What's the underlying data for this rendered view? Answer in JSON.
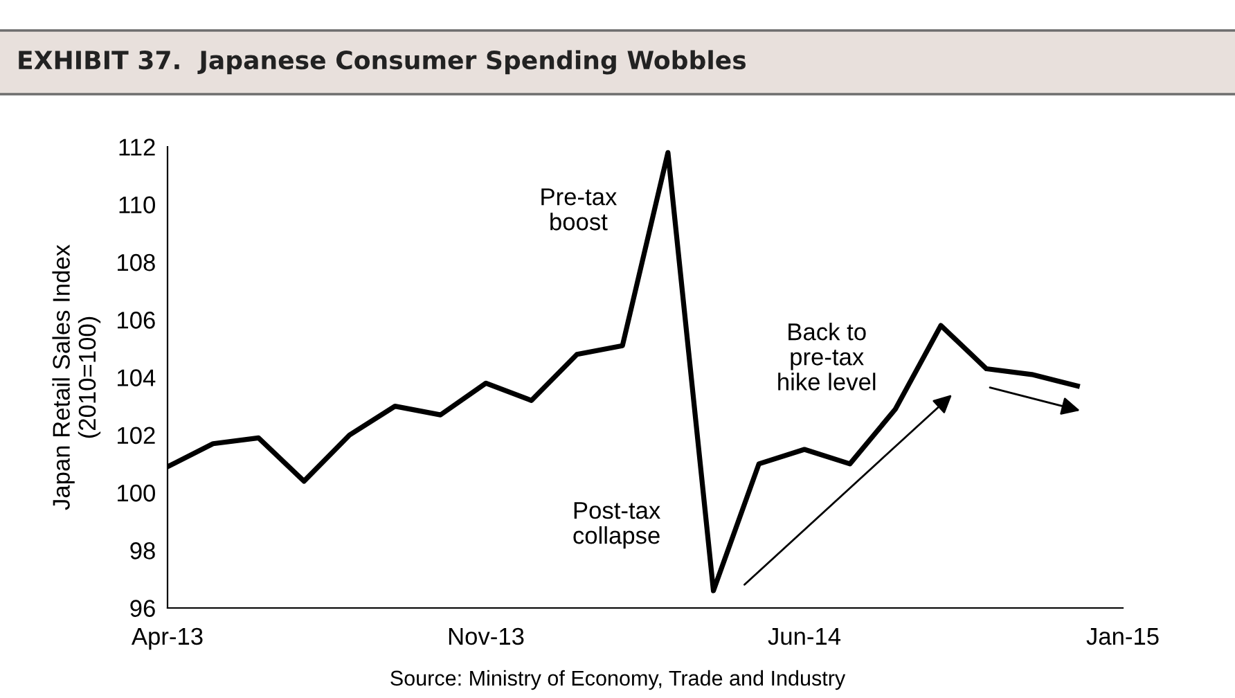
{
  "chart_data": {
    "type": "line",
    "title": "EXHIBIT 37.  Japanese Consumer Spending Wobbles",
    "ylabel": "Japan Retail Sales Index\n(2010=100)",
    "x": [
      "2013-04",
      "2013-05",
      "2013-06",
      "2013-07",
      "2013-08",
      "2013-09",
      "2013-10",
      "2013-11",
      "2013-12",
      "2014-01",
      "2014-02",
      "2014-03",
      "2014-04",
      "2014-05",
      "2014-06",
      "2014-07",
      "2014-08",
      "2014-09",
      "2014-10",
      "2014-11",
      "2014-12"
    ],
    "series": [
      {
        "color": "#000000",
        "values": [
          100.9,
          101.7,
          101.9,
          100.4,
          102.0,
          103.0,
          102.7,
          103.8,
          103.2,
          104.8,
          105.1,
          111.8,
          96.6,
          101.0,
          101.5,
          101.0,
          102.9,
          105.8,
          104.3,
          104.1,
          103.7
        ]
      }
    ],
    "xlim": [
      "2013-04",
      "2015-01"
    ],
    "xticks": [
      {
        "value": "2013-04",
        "label": "Apr-13"
      },
      {
        "value": "2013-11",
        "label": "Nov-13"
      },
      {
        "value": "2014-06",
        "label": "Jun-14"
      },
      {
        "value": "2015-01",
        "label": "Jan-15"
      }
    ],
    "ylim": [
      96,
      112
    ],
    "yticks": [
      96,
      98,
      100,
      102,
      104,
      106,
      108,
      110,
      112
    ],
    "grid": false,
    "legend": false,
    "annotations": [
      "Pre-tax\nboost",
      "Post-tax\ncollapse",
      "Back to\npre-tax\nhike level",
      "Source: Ministry of Economy, Trade and Industry"
    ]
  }
}
